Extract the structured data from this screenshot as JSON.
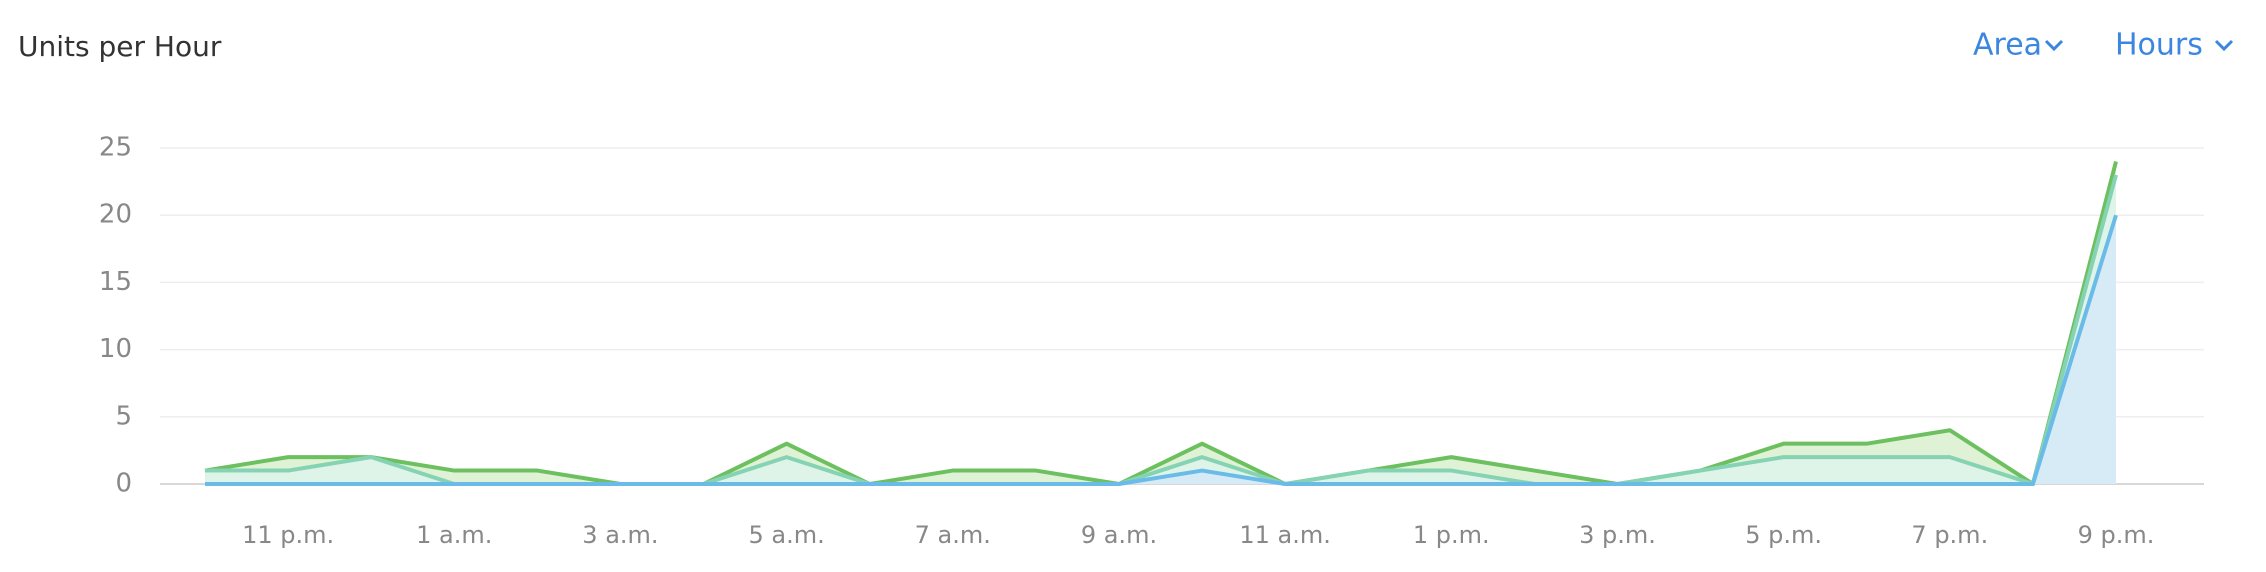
{
  "header": {
    "title": "Units per Hour",
    "controls": [
      "Area",
      "Hours"
    ]
  },
  "chart_data": {
    "type": "area",
    "categories": [
      null,
      "11 p.m.",
      null,
      "1 a.m.",
      null,
      "3 a.m.",
      null,
      "5 a.m.",
      null,
      "7 a.m.",
      null,
      "9 a.m.",
      null,
      "11 a.m.",
      null,
      "1 p.m.",
      null,
      "3 p.m.",
      null,
      "5 p.m.",
      null,
      "7 p.m.",
      null,
      "9 p.m."
    ],
    "series": [
      {
        "color": "#6cc05f",
        "fill": "#d9f0cf",
        "values": [
          1,
          2,
          2,
          1,
          1,
          0,
          0,
          3,
          0,
          1,
          1,
          0,
          3,
          0,
          1,
          2,
          1,
          0,
          1,
          3,
          3,
          4,
          0,
          24
        ]
      },
      {
        "color": "#86d3b3",
        "fill": "#def4ec",
        "values": [
          1,
          1,
          2,
          0,
          0,
          0,
          0,
          2,
          0,
          0,
          0,
          0,
          2,
          0,
          1,
          1,
          0,
          0,
          1,
          2,
          2,
          2,
          0,
          23
        ]
      },
      {
        "color": "#6bbbe9",
        "fill": "#d6e9f9",
        "values": [
          0,
          0,
          0,
          0,
          0,
          0,
          0,
          0,
          0,
          0,
          0,
          0,
          1,
          0,
          0,
          0,
          0,
          0,
          0,
          0,
          0,
          0,
          0,
          20
        ]
      }
    ],
    "ylim": [
      0,
      25
    ],
    "yticks": [
      0,
      5,
      10,
      15,
      20,
      25
    ],
    "grid": true
  }
}
